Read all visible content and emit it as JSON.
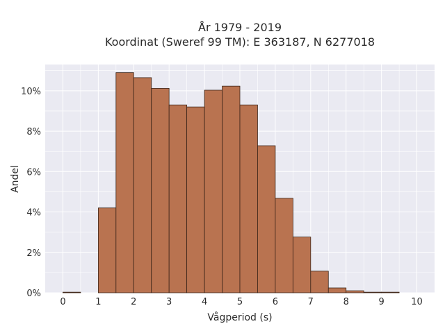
{
  "chart_data": {
    "type": "bar",
    "title_line1": "År 1979 - 2019",
    "title_line2": "Koordinat (Sweref 99 TM): E 363187, N 6277018",
    "xlabel": "Vågperiod (s)",
    "ylabel": "Andel",
    "bin_width": 0.5,
    "bin_starts": [
      0,
      0.5,
      1,
      1.5,
      2,
      2.5,
      3,
      3.5,
      4,
      4.5,
      5,
      5.5,
      6,
      6.5,
      7,
      7.5,
      8,
      8.5,
      9,
      9.5
    ],
    "values": [
      0.03,
      0.0,
      4.2,
      10.9,
      10.65,
      10.12,
      9.3,
      9.2,
      10.03,
      10.23,
      9.3,
      7.28,
      4.68,
      2.76,
      1.07,
      0.24,
      0.1,
      0.03,
      0.03,
      0.0
    ],
    "x_ticks": [
      "0",
      "1",
      "2",
      "3",
      "4",
      "5",
      "6",
      "7",
      "8",
      "9",
      "10"
    ],
    "y_ticks": [
      "0%",
      "2%",
      "4%",
      "6%",
      "8%",
      "10%"
    ],
    "xlim": [
      -0.5,
      10.5
    ],
    "ylim": [
      0,
      11.3
    ],
    "grid": true,
    "bar_color": "#b97350",
    "bar_edge_color": "#3a2418",
    "plot_bg": "#eaeaf2"
  }
}
